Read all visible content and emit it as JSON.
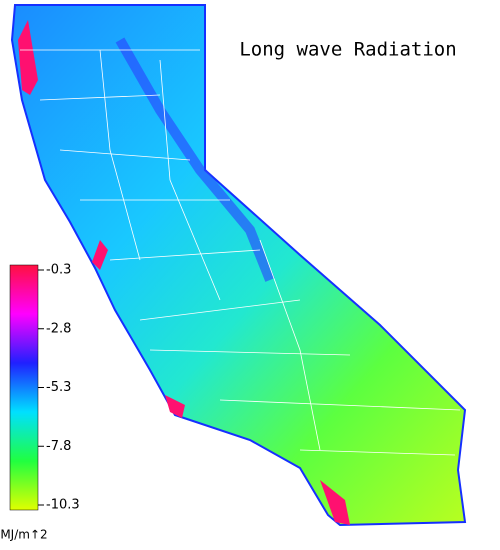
{
  "title": "Long wave Radiation",
  "legend": {
    "ticks": [
      -0.3,
      -2.8,
      -5.3,
      -7.8,
      -10.3
    ],
    "unit": "MJ/m↑2",
    "colors": [
      "#ff1040",
      "#ff00ff",
      "#2020ff",
      "#00e0ff",
      "#20ff40",
      "#e0ff00"
    ]
  }
}
